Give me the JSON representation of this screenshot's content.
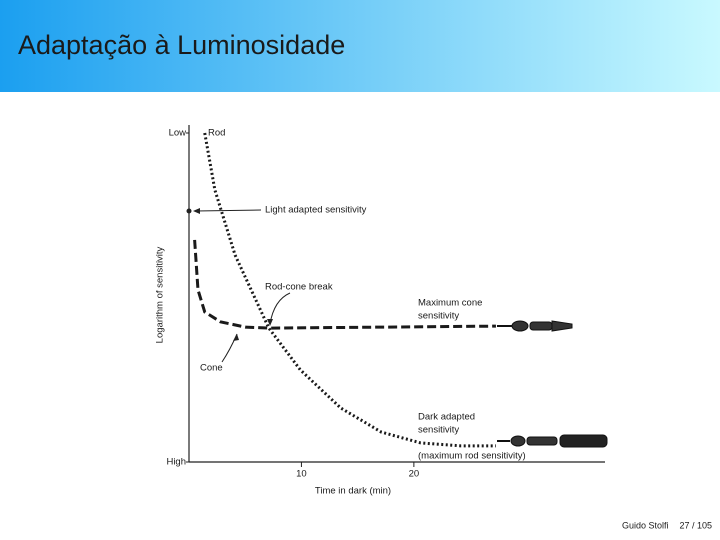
{
  "slide_title": "Adaptação à Luminosidade",
  "footer": {
    "author": "Guido Stolfi",
    "page": "27 / 105"
  },
  "chart_data": {
    "type": "line",
    "x_label": "Time in dark (min)",
    "y_label": "Logarithm of sensitivity",
    "xlim": [
      0,
      37
    ],
    "xticks": [
      10,
      20
    ],
    "ylim": [
      0,
      100
    ],
    "yticks": [
      {
        "value": 0,
        "label": "High"
      },
      {
        "value": 100,
        "label": "Low"
      }
    ],
    "series": [
      {
        "name": "Rod",
        "style": "dotted",
        "color": "#1a1a1a",
        "x": [
          1.4,
          2.3,
          4.1,
          7.1,
          9.9,
          13.5,
          17.1,
          20.6,
          24.2,
          27.3
        ],
        "values": [
          100,
          82.7,
          62.9,
          40.7,
          28,
          16.4,
          9.1,
          5.8,
          4.9,
          4.9
        ]
      },
      {
        "name": "Cone",
        "style": "dashed",
        "color": "#1a1a1a",
        "x": [
          0.5,
          0.8,
          1.4,
          2.8,
          5,
          7.2,
          27.3
        ],
        "values": [
          67.5,
          52.3,
          45.6,
          42.6,
          41,
          40.7,
          41.3
        ]
      }
    ],
    "light_adapted": {
      "x": 0,
      "y": 76.3
    },
    "annotations": [
      {
        "lines": [
          "Light adapted sensitivity"
        ]
      },
      {
        "lines": [
          "Rod-cone break"
        ]
      },
      {
        "lines": [
          "Maximum cone",
          "sensitivity"
        ]
      },
      {
        "lines": [
          "Dark adapted",
          "sensitivity",
          "(maximum rod sensitivity)"
        ]
      }
    ]
  }
}
